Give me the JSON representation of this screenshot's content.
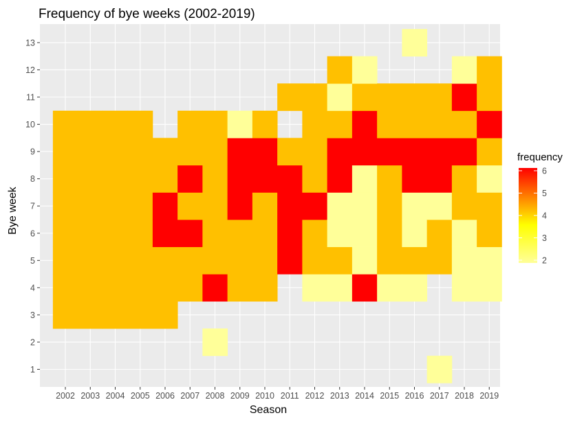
{
  "chart_data": {
    "type": "heatmap",
    "title": "Frequency of bye weeks (2002-2019)",
    "xlabel": "Season",
    "ylabel": "Bye week",
    "x": [
      "2002",
      "2003",
      "2004",
      "2005",
      "2006",
      "2007",
      "2008",
      "2009",
      "2010",
      "2011",
      "2012",
      "2013",
      "2014",
      "2015",
      "2016",
      "2017",
      "2018",
      "2019"
    ],
    "y": [
      1,
      2,
      3,
      4,
      5,
      6,
      7,
      8,
      9,
      10,
      11,
      12,
      13
    ],
    "cells": [
      {
        "season": "2002",
        "values": {
          "3": 4,
          "4": 4,
          "5": 4,
          "6": 4,
          "7": 4,
          "8": 4,
          "9": 4,
          "10": 4
        }
      },
      {
        "season": "2003",
        "values": {
          "3": 4,
          "4": 4,
          "5": 4,
          "6": 4,
          "7": 4,
          "8": 4,
          "9": 4,
          "10": 4
        }
      },
      {
        "season": "2004",
        "values": {
          "3": 4,
          "4": 4,
          "5": 4,
          "6": 4,
          "7": 4,
          "8": 4,
          "9": 4,
          "10": 4
        }
      },
      {
        "season": "2005",
        "values": {
          "3": 4,
          "4": 4,
          "5": 4,
          "6": 4,
          "7": 4,
          "8": 4,
          "9": 4,
          "10": 4
        }
      },
      {
        "season": "2006",
        "values": {
          "3": 4,
          "4": 4,
          "5": 4,
          "6": 6,
          "7": 6,
          "8": 4,
          "9": 4
        }
      },
      {
        "season": "2007",
        "values": {
          "4": 4,
          "5": 4,
          "6": 6,
          "7": 4,
          "8": 6,
          "9": 4,
          "10": 4
        }
      },
      {
        "season": "2008",
        "values": {
          "2": 2,
          "4": 6,
          "5": 4,
          "6": 4,
          "7": 4,
          "8": 4,
          "9": 4,
          "10": 4
        }
      },
      {
        "season": "2009",
        "values": {
          "4": 4,
          "5": 4,
          "6": 4,
          "7": 6,
          "8": 6,
          "9": 6,
          "10": 2
        }
      },
      {
        "season": "2010",
        "values": {
          "4": 4,
          "5": 4,
          "6": 4,
          "7": 4,
          "8": 6,
          "9": 6,
          "10": 4
        }
      },
      {
        "season": "2011",
        "values": {
          "5": 6,
          "6": 6,
          "7": 6,
          "8": 6,
          "9": 4,
          "11": 4
        }
      },
      {
        "season": "2012",
        "values": {
          "4": 2,
          "5": 4,
          "6": 4,
          "7": 6,
          "8": 4,
          "9": 4,
          "10": 4,
          "11": 4
        }
      },
      {
        "season": "2013",
        "values": {
          "4": 2,
          "5": 4,
          "6": 2,
          "7": 2,
          "8": 6,
          "9": 6,
          "10": 4,
          "11": 2,
          "12": 4
        }
      },
      {
        "season": "2014",
        "values": {
          "4": 6,
          "5": 2,
          "6": 2,
          "7": 2,
          "8": 2,
          "9": 6,
          "10": 6,
          "11": 4,
          "12": 2
        }
      },
      {
        "season": "2015",
        "values": {
          "4": 2,
          "5": 4,
          "6": 4,
          "7": 4,
          "8": 4,
          "9": 6,
          "10": 4,
          "11": 4
        }
      },
      {
        "season": "2016",
        "values": {
          "4": 2,
          "5": 4,
          "6": 2,
          "7": 2,
          "8": 6,
          "9": 6,
          "10": 4,
          "11": 4,
          "13": 2
        }
      },
      {
        "season": "2017",
        "values": {
          "1": 2,
          "5": 4,
          "6": 4,
          "7": 2,
          "8": 6,
          "9": 6,
          "10": 4,
          "11": 4
        }
      },
      {
        "season": "2018",
        "values": {
          "4": 2,
          "5": 2,
          "6": 2,
          "7": 4,
          "8": 4,
          "9": 6,
          "10": 4,
          "11": 6,
          "12": 2
        }
      },
      {
        "season": "2019",
        "values": {
          "4": 2,
          "5": 2,
          "6": 4,
          "7": 4,
          "8": 2,
          "9": 4,
          "10": 6,
          "11": 4,
          "12": 4
        }
      }
    ],
    "legend": {
      "title": "frequency",
      "min": 2,
      "max": 6,
      "breaks": [
        2,
        3,
        4,
        5,
        6
      ],
      "low_color": "#ffff99",
      "mid_color": "#ffff00",
      "high_color": "#ff0000",
      "placement": "right"
    },
    "grid": true,
    "panel_background": "#ebebeb",
    "grid_color": "#ffffff"
  }
}
